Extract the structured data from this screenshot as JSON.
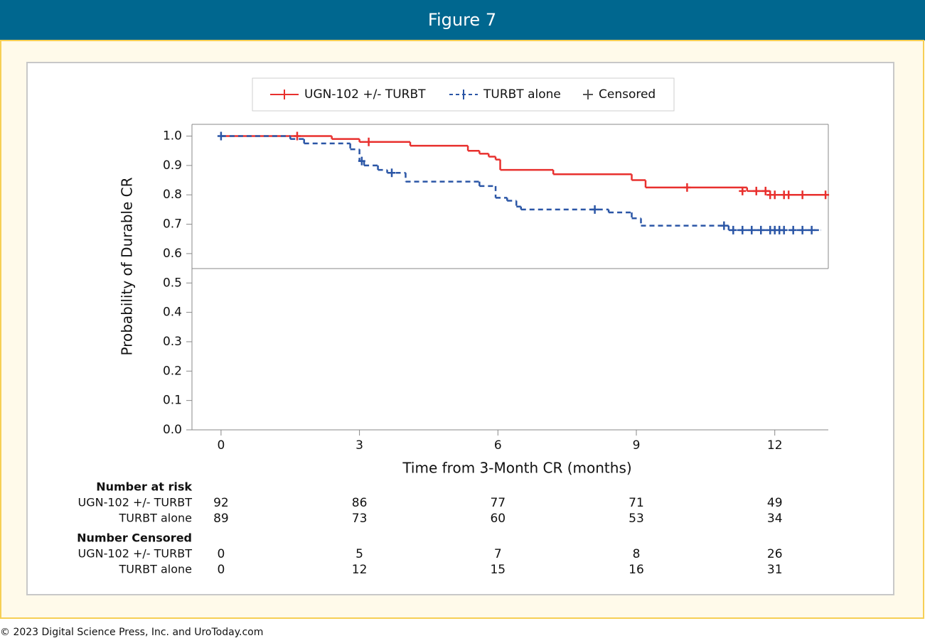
{
  "header": {
    "title": "Figure 7"
  },
  "footer": {
    "text": "© 2023 Digital Science Press, Inc. and UroToday.com"
  },
  "chart_data": {
    "type": "kaplan-meier",
    "xlabel": "Time from 3-Month CR (months)",
    "ylabel": "Probability of Durable CR",
    "xlim": [
      -0.63,
      13.16
    ],
    "ylim": [
      0,
      1.04
    ],
    "xticks": [
      0,
      3,
      6,
      9,
      12
    ],
    "yticks": [
      {
        "value": 0,
        "label": "0.0"
      },
      {
        "value": 0.1,
        "label": "0.1"
      },
      {
        "value": 0.2,
        "label": "0.2"
      },
      {
        "value": 0.3,
        "label": "0.3"
      },
      {
        "value": 0.4,
        "label": "0.4"
      },
      {
        "value": 0.5,
        "label": "0.5"
      },
      {
        "value": 0.6,
        "label": "0.6"
      },
      {
        "value": 0.7,
        "label": "0.7"
      },
      {
        "value": 0.8,
        "label": "0.8"
      },
      {
        "value": 0.9,
        "label": "0.9"
      },
      {
        "value": 1,
        "label": "1.0"
      }
    ],
    "censored_label": "Censored",
    "series": [
      {
        "name": "UGN-102 +/- TURBT",
        "color": "#e8302e",
        "dash": false,
        "x": [
          0,
          2.4,
          3.0,
          4.1,
          5.35,
          5.6,
          5.8,
          5.95,
          6.05,
          7.2,
          8.9,
          9.2,
          11.4,
          11.9,
          13.1
        ],
        "values": [
          1.0,
          0.99,
          0.98,
          0.967,
          0.95,
          0.94,
          0.93,
          0.92,
          0.885,
          0.87,
          0.85,
          0.825,
          0.813,
          0.8,
          0.8
        ],
        "censor_x": [
          1.65,
          3.2,
          10.1,
          11.3,
          11.6,
          11.8,
          11.9,
          12.0,
          12.2,
          12.3,
          12.6,
          13.1
        ],
        "censor_y": [
          1.0,
          0.98,
          0.825,
          0.813,
          0.813,
          0.813,
          0.8,
          0.8,
          0.8,
          0.8,
          0.8,
          0.8
        ]
      },
      {
        "name": "TURBT alone",
        "color": "#2b56a6",
        "dash": true,
        "x": [
          0,
          1.5,
          1.8,
          2.8,
          3.0,
          3.1,
          3.4,
          3.6,
          4.0,
          5.6,
          5.95,
          6.2,
          6.4,
          6.5,
          8.4,
          8.9,
          9.1,
          11.0,
          13.0
        ],
        "values": [
          1.0,
          0.99,
          0.975,
          0.955,
          0.915,
          0.9,
          0.885,
          0.875,
          0.845,
          0.83,
          0.79,
          0.78,
          0.76,
          0.75,
          0.74,
          0.72,
          0.695,
          0.68,
          0.68
        ],
        "censor_x": [
          0,
          3.05,
          3.7,
          8.1,
          10.9,
          11.1,
          11.3,
          11.5,
          11.7,
          11.9,
          12.0,
          12.1,
          12.2,
          12.4,
          12.6,
          12.8
        ],
        "censor_y": [
          1.0,
          0.915,
          0.875,
          0.75,
          0.695,
          0.68,
          0.68,
          0.68,
          0.68,
          0.68,
          0.68,
          0.68,
          0.68,
          0.68,
          0.68,
          0.68
        ]
      }
    ],
    "risk_table": [
      {
        "title": "Number at risk",
        "rows": [
          {
            "label": "UGN-102 +/- TURBT",
            "values": [
              92,
              86,
              77,
              71,
              49
            ]
          },
          {
            "label": "TURBT alone",
            "values": [
              89,
              73,
              60,
              53,
              34
            ]
          }
        ]
      },
      {
        "title": "Number Censored",
        "rows": [
          {
            "label": "UGN-102 +/- TURBT",
            "values": [
              0,
              5,
              7,
              8,
              26
            ]
          },
          {
            "label": "TURBT alone",
            "values": [
              0,
              12,
              15,
              16,
              31
            ]
          }
        ]
      }
    ]
  }
}
